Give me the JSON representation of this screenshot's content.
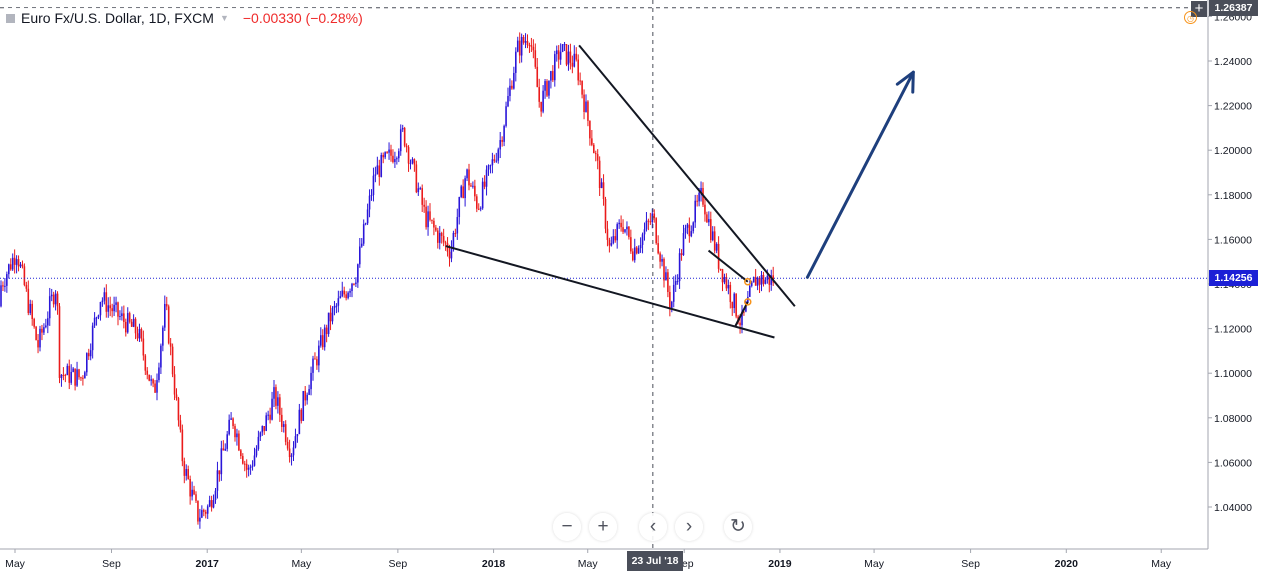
{
  "header": {
    "symbol": "Euro Fx/U.S. Dollar, 1D, FXCM",
    "change": "−0.00330 (−0.28%)"
  },
  "toolbar": {
    "zoom_out_label": "−",
    "zoom_in_label": "+",
    "scroll_left_label": "‹",
    "scroll_right_label": "›",
    "reset_label": "↻",
    "crosshair_add_label": "+"
  },
  "colors": {
    "up_candle": "#2a16d9",
    "down_candle": "#ea1b1b",
    "trendline": "#131722",
    "arrow": "#1e3f7d",
    "last_price": "#1c20d6",
    "grid_axis": "#a3a6af"
  },
  "chart_data": {
    "type": "candlestick",
    "title": "",
    "xlabel": "",
    "ylabel": "",
    "ylim": [
      1.03,
      1.265
    ],
    "y_ticks": [
      "1.04000",
      "1.06000",
      "1.08000",
      "1.10000",
      "1.12000",
      "1.14000",
      "1.16000",
      "1.18000",
      "1.20000",
      "1.22000",
      "1.24000",
      "1.26000"
    ],
    "x_ticks": [
      "May",
      "Sep",
      "2017",
      "May",
      "Sep",
      "2018",
      "May",
      "Sep",
      "2019",
      "May",
      "Sep",
      "2020",
      "May"
    ],
    "last_price": "1.14256",
    "crosshair_price": "1.26387",
    "crosshair_date": "23 Jul '18",
    "price_path": [
      [
        "2016-04-01",
        1.13
      ],
      [
        "2016-05-03",
        1.155
      ],
      [
        "2016-05-30",
        1.112
      ],
      [
        "2016-06-23",
        1.14
      ],
      [
        "2016-06-27",
        1.1
      ],
      [
        "2016-07-25",
        1.098
      ],
      [
        "2016-08-18",
        1.134
      ],
      [
        "2016-09-12",
        1.125
      ],
      [
        "2016-10-05",
        1.118
      ],
      [
        "2016-10-25",
        1.09
      ],
      [
        "2016-11-09",
        1.13
      ],
      [
        "2016-12-01",
        1.06
      ],
      [
        "2016-12-20",
        1.036
      ],
      [
        "2017-01-03",
        1.04
      ],
      [
        "2017-02-02",
        1.08
      ],
      [
        "2017-02-22",
        1.055
      ],
      [
        "2017-03-28",
        1.09
      ],
      [
        "2017-04-18",
        1.065
      ],
      [
        "2017-05-09",
        1.095
      ],
      [
        "2017-06-07",
        1.125
      ],
      [
        "2017-07-10",
        1.145
      ],
      [
        "2017-08-03",
        1.19
      ],
      [
        "2017-08-29",
        1.2
      ],
      [
        "2017-09-08",
        1.208
      ],
      [
        "2017-10-06",
        1.17
      ],
      [
        "2017-10-26",
        1.16
      ],
      [
        "2017-11-07",
        1.155
      ],
      [
        "2017-11-27",
        1.19
      ],
      [
        "2017-12-12",
        1.175
      ],
      [
        "2018-01-10",
        1.205
      ],
      [
        "2018-01-31",
        1.245
      ],
      [
        "2018-02-16",
        1.252
      ],
      [
        "2018-03-01",
        1.22
      ],
      [
        "2018-03-27",
        1.245
      ],
      [
        "2018-04-17",
        1.238
      ],
      [
        "2018-05-15",
        1.19
      ],
      [
        "2018-05-29",
        1.155
      ],
      [
        "2018-06-14",
        1.168
      ],
      [
        "2018-06-28",
        1.155
      ],
      [
        "2018-07-23",
        1.17
      ],
      [
        "2018-08-15",
        1.13
      ],
      [
        "2018-08-31",
        1.16
      ],
      [
        "2018-09-24",
        1.18
      ],
      [
        "2018-10-15",
        1.15
      ],
      [
        "2018-11-13",
        1.122
      ],
      [
        "2018-11-30",
        1.142
      ],
      [
        "2018-12-27",
        1.142
      ]
    ],
    "annotations": [
      {
        "type": "line",
        "from": [
          "2017-11-01",
          1.157
        ],
        "to": [
          "2018-12-25",
          1.116
        ]
      },
      {
        "type": "line",
        "from": [
          "2018-04-20",
          1.247
        ],
        "to": [
          "2019-01-20",
          1.13
        ]
      },
      {
        "type": "line",
        "from": [
          "2018-10-02",
          1.155
        ],
        "to": [
          "2018-11-21",
          1.141
        ]
      },
      {
        "type": "line",
        "from": [
          "2018-11-05",
          1.121
        ],
        "to": [
          "2018-11-21",
          1.132
        ]
      },
      {
        "type": "arrow",
        "from": [
          "2019-02-05",
          1.143
        ],
        "to": [
          "2019-06-20",
          1.235
        ]
      }
    ]
  }
}
